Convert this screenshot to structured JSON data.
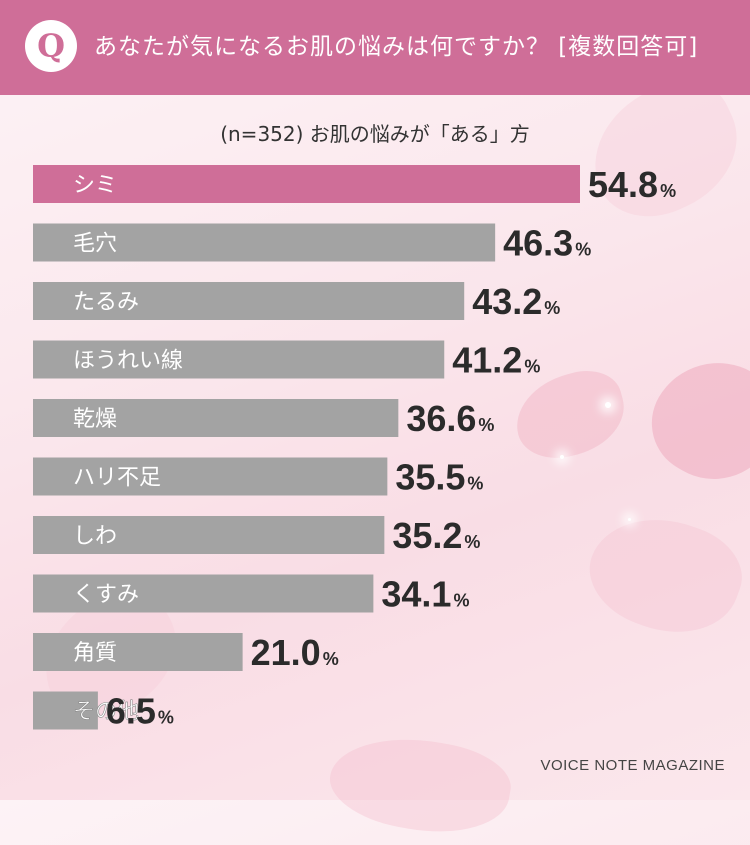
{
  "header": {
    "badge": "Q",
    "title": "あなたが気になるお肌の悩みは何ですか？ [複数回答可]"
  },
  "chart_data": {
    "type": "bar",
    "orientation": "horizontal",
    "title": "(n=352) お肌の悩みが「ある」方",
    "unit": "%",
    "categories": [
      "シミ",
      "毛穴",
      "たるみ",
      "ほうれい線",
      "乾燥",
      "ハリ不足",
      "しわ",
      "くすみ",
      "角質",
      "その他"
    ],
    "values": [
      54.8,
      46.3,
      43.2,
      41.2,
      36.6,
      35.5,
      35.2,
      34.1,
      21.0,
      6.5
    ],
    "highlight_index": 0,
    "xlim": [
      0,
      54.8
    ]
  },
  "colors": {
    "highlight": "#cf6e98",
    "bar": "#a3a3a3",
    "header": "#cf6e98",
    "value_text": "#2b2b2b"
  },
  "footer": {
    "brand": "VOICE NOTE MAGAZINE"
  }
}
